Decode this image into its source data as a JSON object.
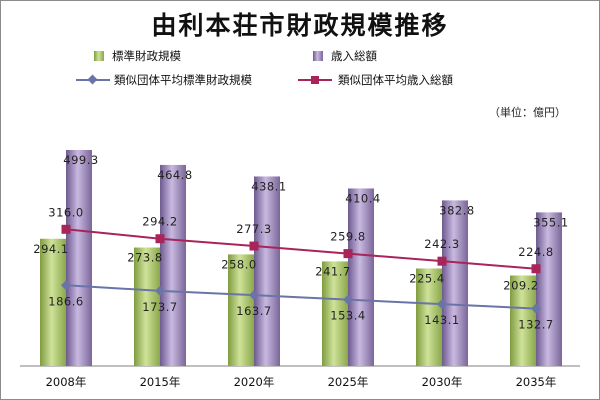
{
  "chart_data": {
    "type": "bar",
    "title": "由利本荘市財政規模推移",
    "unit_label": "（単位：億円）",
    "categories": [
      "2008年",
      "2015年",
      "2020年",
      "2025年",
      "2030年",
      "2035年"
    ],
    "series": [
      {
        "name": "標準財政規模",
        "kind": "bar",
        "color": "#a9c36b",
        "values": [
          294.1,
          273.8,
          258.0,
          241.7,
          225.4,
          209.2
        ],
        "labels": [
          "294.1",
          "273.8",
          "258.0",
          "241.7",
          "225.4",
          "209.2"
        ]
      },
      {
        "name": "歳入総額",
        "kind": "bar",
        "color": "#8d77ad",
        "values": [
          499.3,
          464.8,
          438.1,
          410.4,
          382.8,
          355.1
        ],
        "labels": [
          "499.3",
          "464.8",
          "438.1",
          "410.4",
          "382.8",
          "355.1"
        ]
      },
      {
        "name": "類似団体平均標準財政規模",
        "kind": "line",
        "marker": "diamond",
        "color": "#6b74a8",
        "values": [
          186.6,
          173.7,
          163.7,
          153.4,
          143.1,
          132.7
        ],
        "labels": [
          "186.6",
          "173.7",
          "163.7",
          "153.4",
          "143.1",
          "132.7"
        ]
      },
      {
        "name": "類似団体平均歳入総額",
        "kind": "line",
        "marker": "square",
        "color": "#a8245a",
        "values": [
          316.0,
          294.2,
          277.3,
          259.8,
          242.3,
          224.8
        ],
        "labels": [
          "316.0",
          "294.2",
          "277.3",
          "259.8",
          "242.3",
          "224.8"
        ]
      }
    ],
    "ylim": [
      0,
      520
    ],
    "grid": false,
    "legend": "top"
  }
}
